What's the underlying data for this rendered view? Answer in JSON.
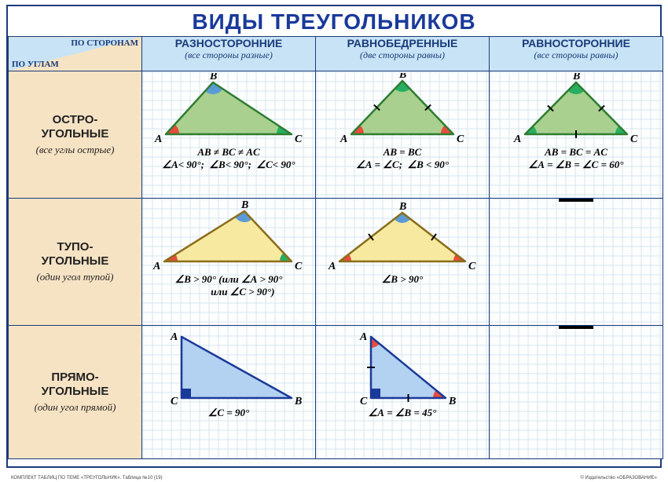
{
  "title": "ВИДЫ ТРЕУГОЛЬНИКОВ",
  "title_fontsize": 28,
  "corner": {
    "by_sides": "ПО СТОРОНАМ",
    "by_angles": "ПО УГЛАМ"
  },
  "columns": [
    {
      "main": "РАЗНОСТОРОННИЕ",
      "sub": "(все стороны разные)"
    },
    {
      "main": "РАВНОБЕДРЕННЫЕ",
      "sub": "(две стороны равны)"
    },
    {
      "main": "РАВНОСТОРОННИЕ",
      "sub": "(все стороны равны)"
    }
  ],
  "rows": [
    {
      "main": "ОСТРО-\nУГОЛЬНЫЕ",
      "sub": "(все углы острые)"
    },
    {
      "main": "ТУПО-\nУГОЛЬНЫЕ",
      "sub": "(один угол тупой)"
    },
    {
      "main": "ПРЯМО-\nУГОЛЬНЫЕ",
      "sub": "(один угол прямой)"
    }
  ],
  "palette": {
    "acute_fill": "#a9d08e",
    "acute_stroke": "#2e7d32",
    "obtuse_fill": "#f7e9a0",
    "obtuse_stroke": "#8a6d1a",
    "right_fill": "#b3d1f0",
    "right_stroke": "#1a3a9a",
    "angle_red": "#e74c3c",
    "angle_green": "#27ae60",
    "angle_blue": "#5b9bd5",
    "tick": "#000"
  },
  "cells": {
    "r1c1": {
      "vertices": {
        "A": [
          20,
          78
        ],
        "B": [
          80,
          12
        ],
        "C": [
          180,
          78
        ]
      },
      "formula": "AB ≠ BC ≠ AC\n∠A< 90°;  ∠B< 90°;  ∠C< 90°"
    },
    "r1c2": {
      "vertices": {
        "A": [
          30,
          78
        ],
        "B": [
          95,
          10
        ],
        "C": [
          160,
          78
        ]
      },
      "ticks": [
        "AB",
        "BC"
      ],
      "formula": "AB = BC\n∠A = ∠C;  ∠B < 90°"
    },
    "r1c3": {
      "vertices": {
        "A": [
          30,
          78
        ],
        "B": [
          95,
          12
        ],
        "C": [
          160,
          78
        ]
      },
      "ticks": [
        "AB",
        "BC",
        "AC"
      ],
      "formula": "AB = BC = AC\n∠A = ∠B = ∠C = 60°"
    },
    "r2c1": {
      "vertices": {
        "A": [
          18,
          78
        ],
        "B": [
          120,
          14
        ],
        "C": [
          180,
          78
        ]
      },
      "formula": "∠B > 90° (или ∠A > 90°\n           или ∠C > 90°)"
    },
    "r2c2": {
      "vertices": {
        "A": [
          20,
          78
        ],
        "B": [
          100,
          16
        ],
        "C": [
          180,
          78
        ]
      },
      "ticks": [
        "AB",
        "BC"
      ],
      "formula": "∠B > 90°"
    },
    "r2c3": {
      "empty": true
    },
    "r3c1": {
      "vertices": {
        "A": [
          40,
          12
        ],
        "C": [
          40,
          90
        ],
        "B": [
          180,
          90
        ]
      },
      "formula": "∠C = 90°"
    },
    "r3c2": {
      "vertices": {
        "A": [
          60,
          12
        ],
        "C": [
          60,
          90
        ],
        "B": [
          155,
          90
        ]
      },
      "ticks": [
        "AC",
        "CB"
      ],
      "formula": "∠A = ∠B = 45°"
    },
    "r3c3": {
      "empty": true
    }
  },
  "footer_left": "КОМПЛЕКТ ТАБЛИЦ ПО ТЕМЕ «ТРЕУГОЛЬНИК». Таблица №10 (19)",
  "footer_right": "© Издательство «ОБРАЗОВАНИЕ»"
}
